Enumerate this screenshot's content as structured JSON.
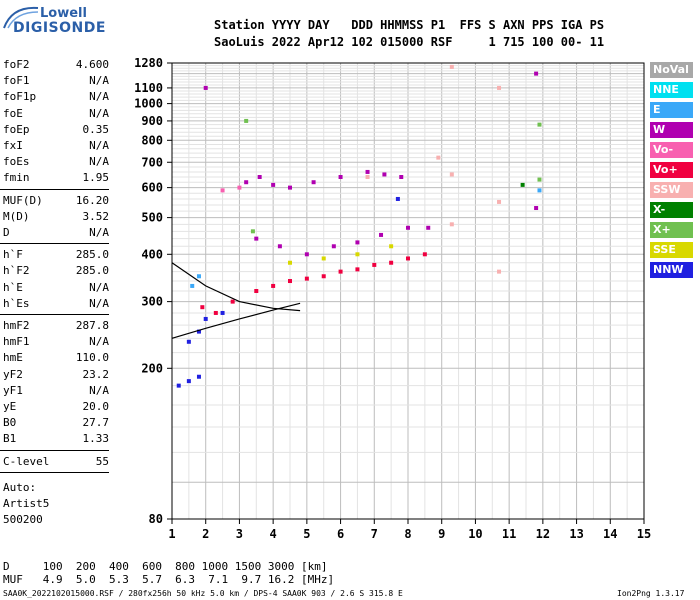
{
  "logo": {
    "lowell": "Lowell",
    "digisonde": "DIGISONDE"
  },
  "header": {
    "line1": "Station YYYY DAY   DDD HHMMSS P1  FFS S AXN PPS IGA PS",
    "line2": "SaoLuis 2022 Apr12 102 015000 RSF     1 715 100 00- 11"
  },
  "parameters": [
    {
      "group": 1,
      "items": [
        {
          "label": "foF2",
          "value": "4.600"
        },
        {
          "label": "foF1",
          "value": "N/A"
        },
        {
          "label": "foF1p",
          "value": "N/A"
        },
        {
          "label": "foE",
          "value": "N/A"
        },
        {
          "label": "foEp",
          "value": "0.35"
        },
        {
          "label": "fxI",
          "value": "N/A"
        },
        {
          "label": "foEs",
          "value": "N/A"
        },
        {
          "label": "fmin",
          "value": "1.95"
        }
      ]
    },
    {
      "group": 2,
      "items": [
        {
          "label": "MUF(D)",
          "value": "16.20"
        },
        {
          "label": "M(D)",
          "value": "3.52"
        },
        {
          "label": "D",
          "value": "N/A"
        }
      ]
    },
    {
      "group": 3,
      "items": [
        {
          "label": "h`F",
          "value": "285.0"
        },
        {
          "label": "h`F2",
          "value": "285.0"
        },
        {
          "label": "h`E",
          "value": "N/A"
        },
        {
          "label": "h`Es",
          "value": "N/A"
        }
      ]
    },
    {
      "group": 4,
      "items": [
        {
          "label": "hmF2",
          "value": "287.8"
        },
        {
          "label": "hmF1",
          "value": "N/A"
        },
        {
          "label": "hmE",
          "value": "110.0"
        },
        {
          "label": "yF2",
          "value": "23.2"
        },
        {
          "label": "yF1",
          "value": "N/A"
        },
        {
          "label": "yE",
          "value": "20.0"
        },
        {
          "label": "B0",
          "value": "27.7"
        },
        {
          "label": "B1",
          "value": "1.33"
        }
      ]
    },
    {
      "group": 5,
      "items": [
        {
          "label": "C-level",
          "value": "55"
        }
      ]
    }
  ],
  "auto": {
    "line1": "Auto:",
    "line2": "Artist5",
    "line3": "500200"
  },
  "legend": [
    {
      "label": "NoVal",
      "color": "#a8a8a8"
    },
    {
      "label": "NNE",
      "color": "#00e0f0"
    },
    {
      "label": "E",
      "color": "#3aa8f8"
    },
    {
      "label": "W",
      "color": "#b000b0"
    },
    {
      "label": "Vo-",
      "color": "#f860b0"
    },
    {
      "label": "Vo+",
      "color": "#f00040"
    },
    {
      "label": "SSW",
      "color": "#f8b0b0"
    },
    {
      "label": "X-",
      "color": "#008000"
    },
    {
      "label": "X+",
      "color": "#70c050"
    },
    {
      "label": "SSE",
      "color": "#d8d800"
    },
    {
      "label": "NNW",
      "color": "#2020e0"
    }
  ],
  "bottom": {
    "d_line": "D     100  200  400  600  800 1000 1500 3000 [km]",
    "muf_line": "MUF   4.9  5.0  5.3  5.7  6.3  7.1  9.7 16.2 [MHz]"
  },
  "footer": {
    "left": "SAA0K_2022102015000.RSF / 280fx256h 50 kHz 5.0 km / DPS-4 SAA0K 903 / 2.6 S 315.8 E",
    "right": "Ion2Png 1.3.17"
  },
  "chart_data": {
    "type": "scatter",
    "title": "",
    "xlabel": "",
    "ylabel": "",
    "xlim": [
      1,
      15
    ],
    "ylim": [
      80,
      1280
    ],
    "x_ticks": [
      1,
      2,
      3,
      4,
      5,
      6,
      7,
      8,
      9,
      10,
      11,
      12,
      13,
      14,
      15
    ],
    "y_ticks": [
      80,
      200,
      300,
      400,
      500,
      600,
      700,
      800,
      900,
      1000,
      1100,
      1280
    ],
    "y_scale": "log",
    "grid": true,
    "series": [
      {
        "name": "W",
        "color": "#b000b0",
        "points": [
          [
            3.2,
            620
          ],
          [
            3.6,
            640
          ],
          [
            4.0,
            610
          ],
          [
            4.5,
            600
          ],
          [
            5.2,
            620
          ],
          [
            6.0,
            640
          ],
          [
            6.8,
            660
          ],
          [
            7.3,
            650
          ],
          [
            7.8,
            640
          ],
          [
            3.5,
            440
          ],
          [
            4.2,
            420
          ],
          [
            5.0,
            400
          ],
          [
            5.8,
            420
          ],
          [
            6.5,
            430
          ],
          [
            7.2,
            450
          ],
          [
            8.0,
            470
          ],
          [
            8.6,
            470
          ],
          [
            2.0,
            1100
          ],
          [
            11.8,
            1200
          ],
          [
            11.8,
            530
          ]
        ]
      },
      {
        "name": "Vo+",
        "color": "#f00040",
        "points": [
          [
            3.5,
            320
          ],
          [
            4.0,
            330
          ],
          [
            4.5,
            340
          ],
          [
            5.0,
            345
          ],
          [
            5.5,
            350
          ],
          [
            6.0,
            360
          ],
          [
            6.5,
            365
          ],
          [
            7.0,
            375
          ],
          [
            7.5,
            380
          ],
          [
            8.0,
            390
          ],
          [
            8.5,
            400
          ],
          [
            1.9,
            290
          ],
          [
            2.3,
            280
          ],
          [
            2.8,
            300
          ]
        ]
      },
      {
        "name": "NNW",
        "color": "#2020e0",
        "points": [
          [
            1.5,
            235
          ],
          [
            1.8,
            250
          ],
          [
            2.0,
            270
          ],
          [
            2.5,
            280
          ],
          [
            1.2,
            180
          ],
          [
            1.5,
            185
          ],
          [
            1.8,
            190
          ],
          [
            7.7,
            560
          ]
        ]
      },
      {
        "name": "SSW",
        "color": "#f8b0b0",
        "points": [
          [
            9.3,
            1250
          ],
          [
            9.3,
            650
          ],
          [
            10.7,
            1100
          ],
          [
            10.7,
            550
          ],
          [
            10.7,
            360
          ],
          [
            9.3,
            480
          ],
          [
            8.9,
            720
          ],
          [
            6.8,
            640
          ]
        ]
      },
      {
        "name": "X+",
        "color": "#70c050",
        "points": [
          [
            3.2,
            900
          ],
          [
            11.9,
            880
          ],
          [
            11.9,
            630
          ],
          [
            3.4,
            460
          ]
        ]
      },
      {
        "name": "E",
        "color": "#3aa8f8",
        "points": [
          [
            1.6,
            330
          ],
          [
            1.8,
            350
          ],
          [
            11.9,
            590
          ]
        ]
      },
      {
        "name": "SSE",
        "color": "#d8d800",
        "points": [
          [
            5.5,
            390
          ],
          [
            6.5,
            400
          ],
          [
            7.5,
            420
          ],
          [
            4.5,
            380
          ]
        ]
      },
      {
        "name": "Vo-",
        "color": "#f860b0",
        "points": [
          [
            3.0,
            600
          ],
          [
            2.5,
            590
          ]
        ]
      },
      {
        "name": "X-",
        "color": "#008000",
        "points": [
          [
            11.4,
            610
          ]
        ]
      }
    ],
    "traces": [
      {
        "color": "#000000",
        "points": [
          [
            1.0,
            240
          ],
          [
            2.0,
            255
          ],
          [
            3.0,
            270
          ],
          [
            4.0,
            285
          ],
          [
            4.8,
            297
          ]
        ]
      },
      {
        "color": "#000000",
        "points": [
          [
            1.0,
            380
          ],
          [
            2.0,
            330
          ],
          [
            3.0,
            300
          ],
          [
            4.0,
            288
          ],
          [
            4.8,
            284
          ]
        ]
      }
    ]
  }
}
